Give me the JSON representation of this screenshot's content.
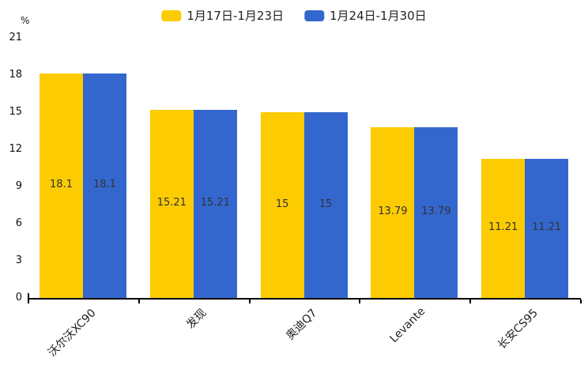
{
  "chart_data": {
    "type": "bar",
    "unit": "%",
    "categories": [
      "沃尔沃XC90",
      "发现",
      "奥迪Q7",
      "Levante",
      "长安CS95"
    ],
    "series": [
      {
        "name": "1月17日-1月23日",
        "color": "#FCCB02",
        "values": [
          18.1,
          15.21,
          15,
          13.79,
          11.21
        ]
      },
      {
        "name": "1月24日-1月30日",
        "color": "#3467CE",
        "values": [
          18.1,
          15.21,
          15,
          13.79,
          11.21
        ]
      }
    ],
    "value_labels": [
      [
        "18.1",
        "15.21",
        "15",
        "13.79",
        "11.21"
      ],
      [
        "18.1",
        "15.21",
        "15",
        "13.79",
        "11.21"
      ]
    ],
    "ylim": [
      0,
      21
    ],
    "yticks": [
      0,
      3,
      6,
      9,
      12,
      15,
      18,
      21
    ],
    "legend_position": "top-center",
    "grid": "off",
    "axis_color": "#000000",
    "label_color": "#333333"
  }
}
